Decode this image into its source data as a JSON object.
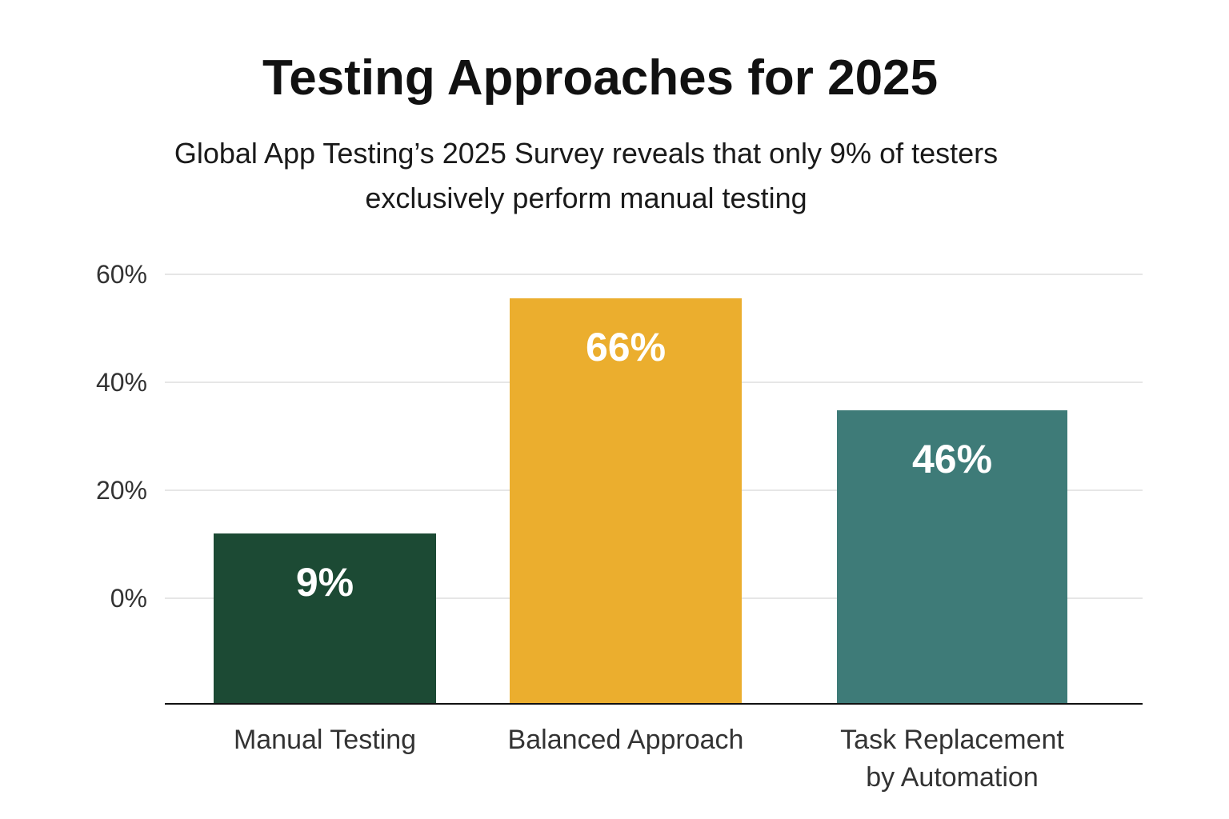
{
  "chart_data": {
    "type": "bar",
    "title": "Testing Approaches for 2025",
    "subtitle": "Global App Testing’s 2025 Survey reveals that only 9% of testers exclusively perform manual testing",
    "categories": [
      [
        "Manual Testing"
      ],
      [
        "Balanced Approach"
      ],
      [
        "Task Replacement",
        "by Automation"
      ]
    ],
    "values": [
      9,
      66,
      46
    ],
    "data_labels": [
      "9%",
      "66%",
      "46%"
    ],
    "colors": [
      "#1c4a34",
      "#ebae2e",
      "#3e7b78"
    ],
    "yticks": [
      "0%",
      "20%",
      "40%",
      "60%"
    ],
    "ylim": [
      0,
      60
    ],
    "grid": true,
    "legend": "none"
  }
}
